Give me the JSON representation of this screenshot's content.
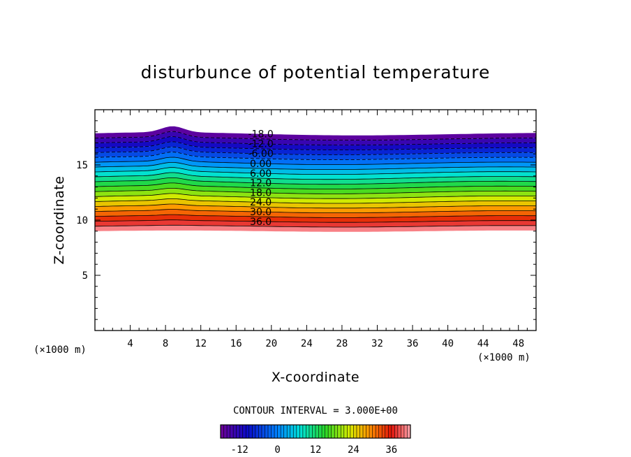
{
  "chart_data": {
    "type": "contour",
    "title": "disturbunce of potential temperature",
    "xlabel": "X-coordinate",
    "ylabel": "Z-coordinate",
    "x_unit": "(×1000 m)",
    "z_unit": "(×1000 m)",
    "xlim": [
      0,
      50
    ],
    "ylim": [
      0,
      20
    ],
    "x_ticks": [
      "4",
      "8",
      "12",
      "16",
      "20",
      "24",
      "28",
      "32",
      "36",
      "40",
      "44",
      "48"
    ],
    "y_ticks": [
      "5",
      "10",
      "15"
    ],
    "contour_interval": "CONTOUR INTERVAL = 3.000E+00",
    "contour_labels": [
      "-18.0",
      "-12.0",
      "-6.00",
      "0.00",
      "6.00",
      "12.0",
      "18.0",
      "24.0",
      "30.0",
      "36.0"
    ],
    "colorbar": {
      "min": -18,
      "max": 42,
      "ticks": [
        "-12",
        "0",
        "12",
        "24",
        "36"
      ]
    },
    "field": {
      "bottom_z": 9,
      "top_z": 17.8,
      "bump_x": 8.8,
      "bump_height": 0.55
    }
  }
}
